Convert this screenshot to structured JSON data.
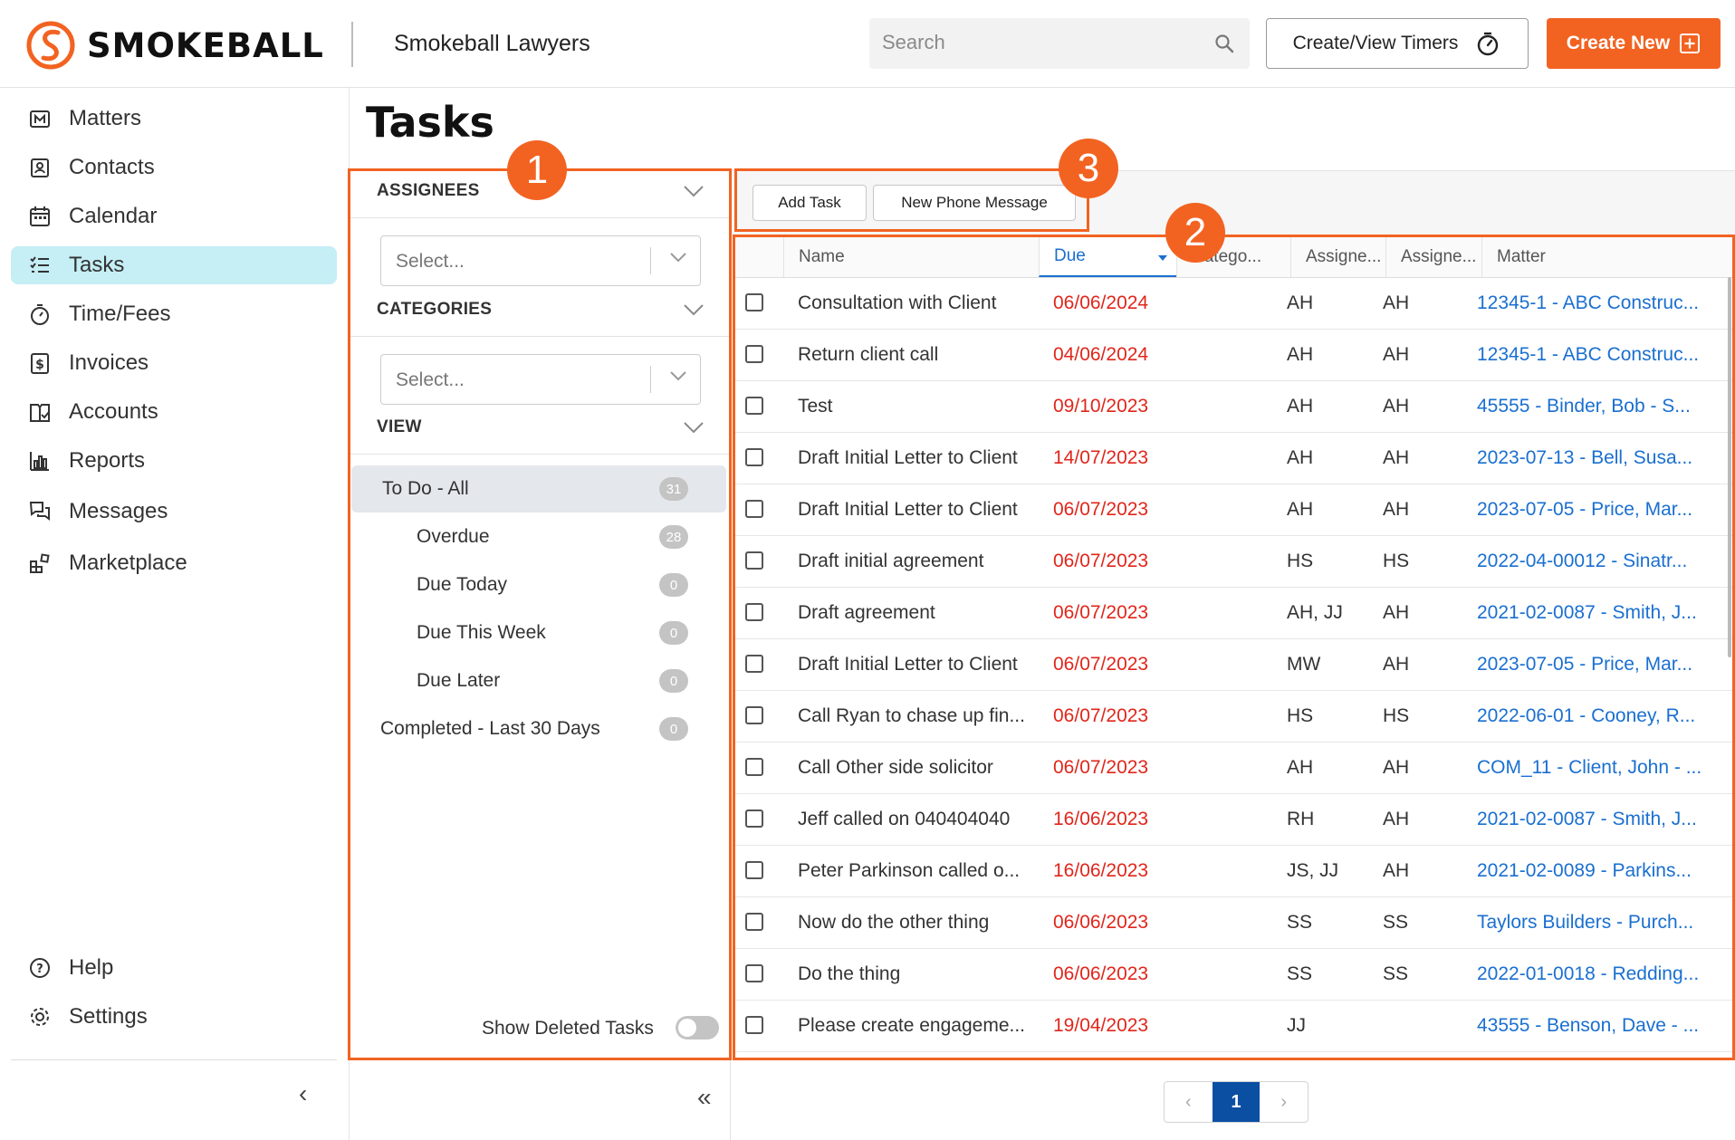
{
  "header": {
    "brand": "SMOKEBALL",
    "firm_name": "Smokeball Lawyers",
    "search_placeholder": "Search",
    "timers_label": "Create/View Timers",
    "create_label": "Create New",
    "accent_color": "#f26322"
  },
  "nav": {
    "items": [
      {
        "label": "Matters",
        "icon": "matters-icon"
      },
      {
        "label": "Contacts",
        "icon": "contacts-icon"
      },
      {
        "label": "Calendar",
        "icon": "calendar-icon"
      },
      {
        "label": "Tasks",
        "icon": "tasks-icon"
      },
      {
        "label": "Time/Fees",
        "icon": "stopwatch-icon"
      },
      {
        "label": "Invoices",
        "icon": "invoice-icon"
      },
      {
        "label": "Accounts",
        "icon": "accounts-icon"
      },
      {
        "label": "Reports",
        "icon": "reports-icon"
      },
      {
        "label": "Messages",
        "icon": "messages-icon"
      },
      {
        "label": "Marketplace",
        "icon": "marketplace-icon"
      }
    ],
    "bottom": [
      {
        "label": "Help",
        "icon": "help-icon"
      },
      {
        "label": "Settings",
        "icon": "gear-icon"
      }
    ],
    "active_item": "Tasks"
  },
  "page": {
    "title": "Tasks"
  },
  "filters": {
    "assignees_title": "ASSIGNEES",
    "assignees_placeholder": "Select...",
    "categories_title": "CATEGORIES",
    "categories_placeholder": "Select...",
    "view_title": "VIEW",
    "views": [
      {
        "label": "To Do - All",
        "count": "31"
      },
      {
        "label": "Overdue",
        "count": "28"
      },
      {
        "label": "Due Today",
        "count": "0"
      },
      {
        "label": "Due This Week",
        "count": "0"
      },
      {
        "label": "Due Later",
        "count": "0"
      },
      {
        "label": "Completed - Last 30 Days",
        "count": "0"
      }
    ],
    "show_deleted_label": "Show Deleted Tasks"
  },
  "toolbar": {
    "add_task": "Add Task",
    "new_phone_message": "New Phone Message"
  },
  "grid": {
    "columns": [
      "Name",
      "Due",
      "Catego...",
      "Assigne...",
      "Assigne...",
      "Matter"
    ],
    "rows": [
      {
        "name": "Consultation with Client",
        "due": "06/06/2024",
        "category": "",
        "assignee": "AH",
        "assigned_by": "AH",
        "matter": "12345-1 - ABC Construc..."
      },
      {
        "name": "Return client call",
        "due": "04/06/2024",
        "category": "",
        "assignee": "AH",
        "assigned_by": "AH",
        "matter": "12345-1 - ABC Construc..."
      },
      {
        "name": "Test",
        "due": "09/10/2023",
        "category": "",
        "assignee": "AH",
        "assigned_by": "AH",
        "matter": "45555 - Binder, Bob - S..."
      },
      {
        "name": "Draft Initial Letter to Client",
        "due": "14/07/2023",
        "category": "",
        "assignee": "AH",
        "assigned_by": "AH",
        "matter": "2023-07-13 - Bell, Susa..."
      },
      {
        "name": "Draft Initial Letter to Client",
        "due": "06/07/2023",
        "category": "",
        "assignee": "AH",
        "assigned_by": "AH",
        "matter": "2023-07-05 - Price, Mar..."
      },
      {
        "name": "Draft initial agreement",
        "due": "06/07/2023",
        "category": "",
        "assignee": "HS",
        "assigned_by": "HS",
        "matter": "2022-04-00012 - Sinatr..."
      },
      {
        "name": "Draft agreement",
        "due": "06/07/2023",
        "category": "",
        "assignee": "AH, JJ",
        "assigned_by": "AH",
        "matter": "2021-02-0087 - Smith, J..."
      },
      {
        "name": "Draft Initial Letter to Client",
        "due": "06/07/2023",
        "category": "",
        "assignee": "MW",
        "assigned_by": "AH",
        "matter": "2023-07-05 - Price, Mar..."
      },
      {
        "name": "Call Ryan to chase up fin...",
        "due": "06/07/2023",
        "category": "",
        "assignee": "HS",
        "assigned_by": "HS",
        "matter": "2022-06-01 - Cooney, R..."
      },
      {
        "name": "Call Other side solicitor",
        "due": "06/07/2023",
        "category": "",
        "assignee": "AH",
        "assigned_by": "AH",
        "matter": "COM_11 - Client, John - ..."
      },
      {
        "name": "Jeff called on 040404040",
        "due": "16/06/2023",
        "category": "",
        "assignee": "RH",
        "assigned_by": "AH",
        "matter": "2021-02-0087 - Smith, J..."
      },
      {
        "name": "Peter Parkinson called o...",
        "due": "16/06/2023",
        "category": "",
        "assignee": "JS, JJ",
        "assigned_by": "AH",
        "matter": "2021-02-0089 - Parkins..."
      },
      {
        "name": "Now do the other thing",
        "due": "06/06/2023",
        "category": "",
        "assignee": "SS",
        "assigned_by": "SS",
        "matter": "Taylors Builders - Purch..."
      },
      {
        "name": "Do the thing",
        "due": "06/06/2023",
        "category": "",
        "assignee": "SS",
        "assigned_by": "SS",
        "matter": "2022-01-0018 - Redding..."
      },
      {
        "name": "Please create engageme...",
        "due": "19/04/2023",
        "category": "",
        "assignee": "JJ",
        "assigned_by": "",
        "matter": "43555 - Benson, Dave - ..."
      }
    ]
  },
  "pagination": {
    "prev": "‹",
    "current": "1",
    "next": "›"
  },
  "callouts": [
    "1",
    "2",
    "3"
  ]
}
